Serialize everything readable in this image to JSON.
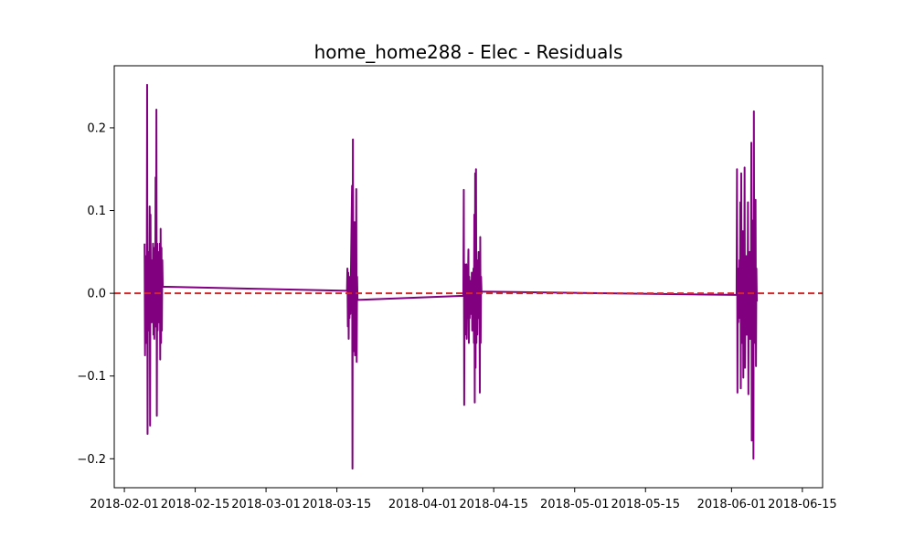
{
  "chart_data": {
    "type": "line",
    "title": "home_home288 - Elec - Residuals",
    "xlabel": "",
    "ylabel": "",
    "x_type": "date",
    "xlim": [
      "2018-01-30",
      "2018-06-19"
    ],
    "ylim": [
      -0.235,
      0.275
    ],
    "x_ticks": [
      "2018-02-01",
      "2018-02-15",
      "2018-03-01",
      "2018-03-15",
      "2018-04-01",
      "2018-04-15",
      "2018-05-01",
      "2018-05-15",
      "2018-06-01",
      "2018-06-15"
    ],
    "y_ticks": [
      -0.2,
      -0.1,
      0.0,
      0.1,
      0.2
    ],
    "y_tick_labels": [
      "−0.2",
      "−0.1",
      "0.0",
      "0.1",
      "0.2"
    ],
    "grid": false,
    "legend": "none",
    "series": [
      {
        "color": "#800080",
        "points": [
          [
            "2018-02-05 00:00",
            0.06
          ],
          [
            "2018-02-05 02:00",
            -0.075
          ],
          [
            "2018-02-05 04:00",
            0.045
          ],
          [
            "2018-02-05 06:00",
            -0.06
          ],
          [
            "2018-02-05 08:00",
            0.035
          ],
          [
            "2018-02-05 10:00",
            -0.04
          ],
          [
            "2018-02-05 12:00",
            0.252
          ],
          [
            "2018-02-05 14:00",
            -0.17
          ],
          [
            "2018-02-05 16:00",
            0.05
          ],
          [
            "2018-02-05 18:00",
            -0.045
          ],
          [
            "2018-02-05 20:00",
            0.03
          ],
          [
            "2018-02-05 22:00",
            -0.03
          ],
          [
            "2018-02-06 00:00",
            0.105
          ],
          [
            "2018-02-06 02:00",
            -0.16
          ],
          [
            "2018-02-06 04:00",
            0.095
          ],
          [
            "2018-02-06 06:00",
            -0.03
          ],
          [
            "2018-02-06 08:00",
            0.04
          ],
          [
            "2018-02-06 10:00",
            -0.035
          ],
          [
            "2018-02-06 12:00",
            0.02
          ],
          [
            "2018-02-06 14:00",
            -0.02
          ],
          [
            "2018-02-06 16:00",
            0.06
          ],
          [
            "2018-02-06 18:00",
            -0.05
          ],
          [
            "2018-02-06 20:00",
            0.035
          ],
          [
            "2018-02-06 22:00",
            -0.055
          ],
          [
            "2018-02-07 00:00",
            0.055
          ],
          [
            "2018-02-07 02:00",
            -0.04
          ],
          [
            "2018-02-07 04:00",
            0.14
          ],
          [
            "2018-02-07 06:00",
            -0.03
          ],
          [
            "2018-02-07 08:00",
            0.222
          ],
          [
            "2018-02-07 10:00",
            -0.148
          ],
          [
            "2018-02-07 12:00",
            0.06
          ],
          [
            "2018-02-07 14:00",
            -0.045
          ],
          [
            "2018-02-07 16:00",
            0.03
          ],
          [
            "2018-02-07 18:00",
            -0.035
          ],
          [
            "2018-02-07 20:00",
            0.05
          ],
          [
            "2018-02-07 22:00",
            -0.03
          ],
          [
            "2018-02-08 00:00",
            0.06
          ],
          [
            "2018-02-08 02:00",
            -0.08
          ],
          [
            "2018-02-08 04:00",
            0.078
          ],
          [
            "2018-02-08 06:00",
            -0.06
          ],
          [
            "2018-02-08 08:00",
            0.055
          ],
          [
            "2018-02-08 10:00",
            -0.045
          ],
          [
            "2018-02-08 12:00",
            0.04
          ],
          [
            "2018-02-08 14:00",
            0.008
          ],
          [
            "2018-03-17 00:00",
            0.003
          ],
          [
            "2018-03-17 02:00",
            0.03
          ],
          [
            "2018-03-17 04:00",
            -0.04
          ],
          [
            "2018-03-17 06:00",
            0.025
          ],
          [
            "2018-03-17 08:00",
            -0.055
          ],
          [
            "2018-03-17 10:00",
            0.02
          ],
          [
            "2018-03-17 12:00",
            -0.03
          ],
          [
            "2018-03-17 14:00",
            0.015
          ],
          [
            "2018-03-17 16:00",
            -0.025
          ],
          [
            "2018-03-17 18:00",
            0.01
          ],
          [
            "2018-03-18 00:00",
            0.13
          ],
          [
            "2018-03-18 02:00",
            -0.212
          ],
          [
            "2018-03-18 04:00",
            0.186
          ],
          [
            "2018-03-18 06:00",
            -0.06
          ],
          [
            "2018-03-18 08:00",
            0.04
          ],
          [
            "2018-03-18 10:00",
            -0.07
          ],
          [
            "2018-03-18 12:00",
            0.086
          ],
          [
            "2018-03-18 14:00",
            -0.075
          ],
          [
            "2018-03-18 16:00",
            0.05
          ],
          [
            "2018-03-18 18:00",
            -0.045
          ],
          [
            "2018-03-18 20:00",
            0.126
          ],
          [
            "2018-03-18 22:00",
            -0.083
          ],
          [
            "2018-03-19 00:00",
            0.02
          ],
          [
            "2018-03-19 02:00",
            -0.008
          ],
          [
            "2018-04-09 00:00",
            -0.003
          ],
          [
            "2018-04-09 02:00",
            0.125
          ],
          [
            "2018-04-09 04:00",
            -0.135
          ],
          [
            "2018-04-09 06:00",
            0.035
          ],
          [
            "2018-04-09 08:00",
            -0.05
          ],
          [
            "2018-04-09 10:00",
            0.03
          ],
          [
            "2018-04-09 12:00",
            -0.04
          ],
          [
            "2018-04-09 14:00",
            0.035
          ],
          [
            "2018-04-09 16:00",
            -0.055
          ],
          [
            "2018-04-09 18:00",
            0.025
          ],
          [
            "2018-04-09 20:00",
            -0.03
          ],
          [
            "2018-04-09 22:00",
            0.02
          ],
          [
            "2018-04-10 00:00",
            0.053
          ],
          [
            "2018-04-10 02:00",
            -0.06
          ],
          [
            "2018-04-10 04:00",
            0.02
          ],
          [
            "2018-04-10 06:00",
            -0.03
          ],
          [
            "2018-04-10 08:00",
            0.015
          ],
          [
            "2018-04-10 10:00",
            -0.025
          ],
          [
            "2018-04-10 12:00",
            0.01
          ],
          [
            "2018-04-10 14:00",
            -0.02
          ],
          [
            "2018-04-10 16:00",
            0.025
          ],
          [
            "2018-04-10 18:00",
            -0.045
          ],
          [
            "2018-04-10 20:00",
            0.003
          ],
          [
            "2018-04-10 22:00",
            -0.035
          ],
          [
            "2018-04-11 00:00",
            0.03
          ],
          [
            "2018-04-11 02:00",
            -0.06
          ],
          [
            "2018-04-11 04:00",
            0.095
          ],
          [
            "2018-04-11 06:00",
            -0.132
          ],
          [
            "2018-04-11 08:00",
            0.145
          ],
          [
            "2018-04-11 10:00",
            -0.09
          ],
          [
            "2018-04-11 12:00",
            0.15
          ],
          [
            "2018-04-11 14:00",
            -0.06
          ],
          [
            "2018-04-11 16:00",
            0.04
          ],
          [
            "2018-04-11 18:00",
            -0.05
          ],
          [
            "2018-04-11 20:00",
            0.02
          ],
          [
            "2018-04-11 22:00",
            -0.03
          ],
          [
            "2018-04-12 00:00",
            0.05
          ],
          [
            "2018-04-12 02:00",
            -0.025
          ],
          [
            "2018-04-12 04:00",
            0.02
          ],
          [
            "2018-04-12 06:00",
            -0.12
          ],
          [
            "2018-04-12 08:00",
            0.068
          ],
          [
            "2018-04-12 10:00",
            -0.06
          ],
          [
            "2018-04-12 12:00",
            0.02
          ],
          [
            "2018-04-12 14:00",
            0.002
          ],
          [
            "2018-06-02 00:00",
            -0.002
          ],
          [
            "2018-06-02 02:00",
            0.15
          ],
          [
            "2018-06-02 04:00",
            -0.12
          ],
          [
            "2018-06-02 06:00",
            0.02
          ],
          [
            "2018-06-02 08:00",
            -0.035
          ],
          [
            "2018-06-02 10:00",
            0.03
          ],
          [
            "2018-06-02 12:00",
            -0.025
          ],
          [
            "2018-06-02 14:00",
            0.04
          ],
          [
            "2018-06-02 16:00",
            -0.03
          ],
          [
            "2018-06-02 18:00",
            0.11
          ],
          [
            "2018-06-02 20:00",
            -0.115
          ],
          [
            "2018-06-02 22:00",
            0.145
          ],
          [
            "2018-06-03 00:00",
            -0.03
          ],
          [
            "2018-06-03 02:00",
            0.035
          ],
          [
            "2018-06-03 04:00",
            -0.06
          ],
          [
            "2018-06-03 06:00",
            0.075
          ],
          [
            "2018-06-03 08:00",
            -0.102
          ],
          [
            "2018-06-03 10:00",
            0.06
          ],
          [
            "2018-06-03 12:00",
            -0.04
          ],
          [
            "2018-06-03 14:00",
            0.152
          ],
          [
            "2018-06-03 16:00",
            -0.09
          ],
          [
            "2018-06-03 18:00",
            0.02
          ],
          [
            "2018-06-03 20:00",
            -0.025
          ],
          [
            "2018-06-03 22:00",
            0.045
          ],
          [
            "2018-06-04 00:00",
            -0.05
          ],
          [
            "2018-06-04 02:00",
            0.04
          ],
          [
            "2018-06-04 04:00",
            -0.03
          ],
          [
            "2018-06-04 06:00",
            0.11
          ],
          [
            "2018-06-04 08:00",
            -0.122
          ],
          [
            "2018-06-04 10:00",
            0.02
          ],
          [
            "2018-06-04 12:00",
            -0.04
          ],
          [
            "2018-06-04 14:00",
            0.05
          ],
          [
            "2018-06-04 16:00",
            -0.055
          ],
          [
            "2018-06-04 18:00",
            0.03
          ],
          [
            "2018-06-04 20:00",
            -0.03
          ],
          [
            "2018-06-04 22:00",
            0.182
          ],
          [
            "2018-06-05 00:00",
            -0.178
          ],
          [
            "2018-06-05 02:00",
            0.025
          ],
          [
            "2018-06-05 04:00",
            -0.09
          ],
          [
            "2018-06-05 06:00",
            0.088
          ],
          [
            "2018-06-05 08:00",
            -0.2
          ],
          [
            "2018-06-05 10:00",
            0.22
          ],
          [
            "2018-06-05 12:00",
            -0.06
          ],
          [
            "2018-06-05 14:00",
            0.08
          ],
          [
            "2018-06-05 16:00",
            -0.045
          ],
          [
            "2018-06-05 18:00",
            0.113
          ],
          [
            "2018-06-05 20:00",
            -0.088
          ],
          [
            "2018-06-05 22:00",
            0.03
          ],
          [
            "2018-06-06 00:00",
            -0.01
          ]
        ]
      }
    ],
    "reference_line": {
      "y": 0.0,
      "color": "#d62728",
      "style": "dashed"
    }
  }
}
